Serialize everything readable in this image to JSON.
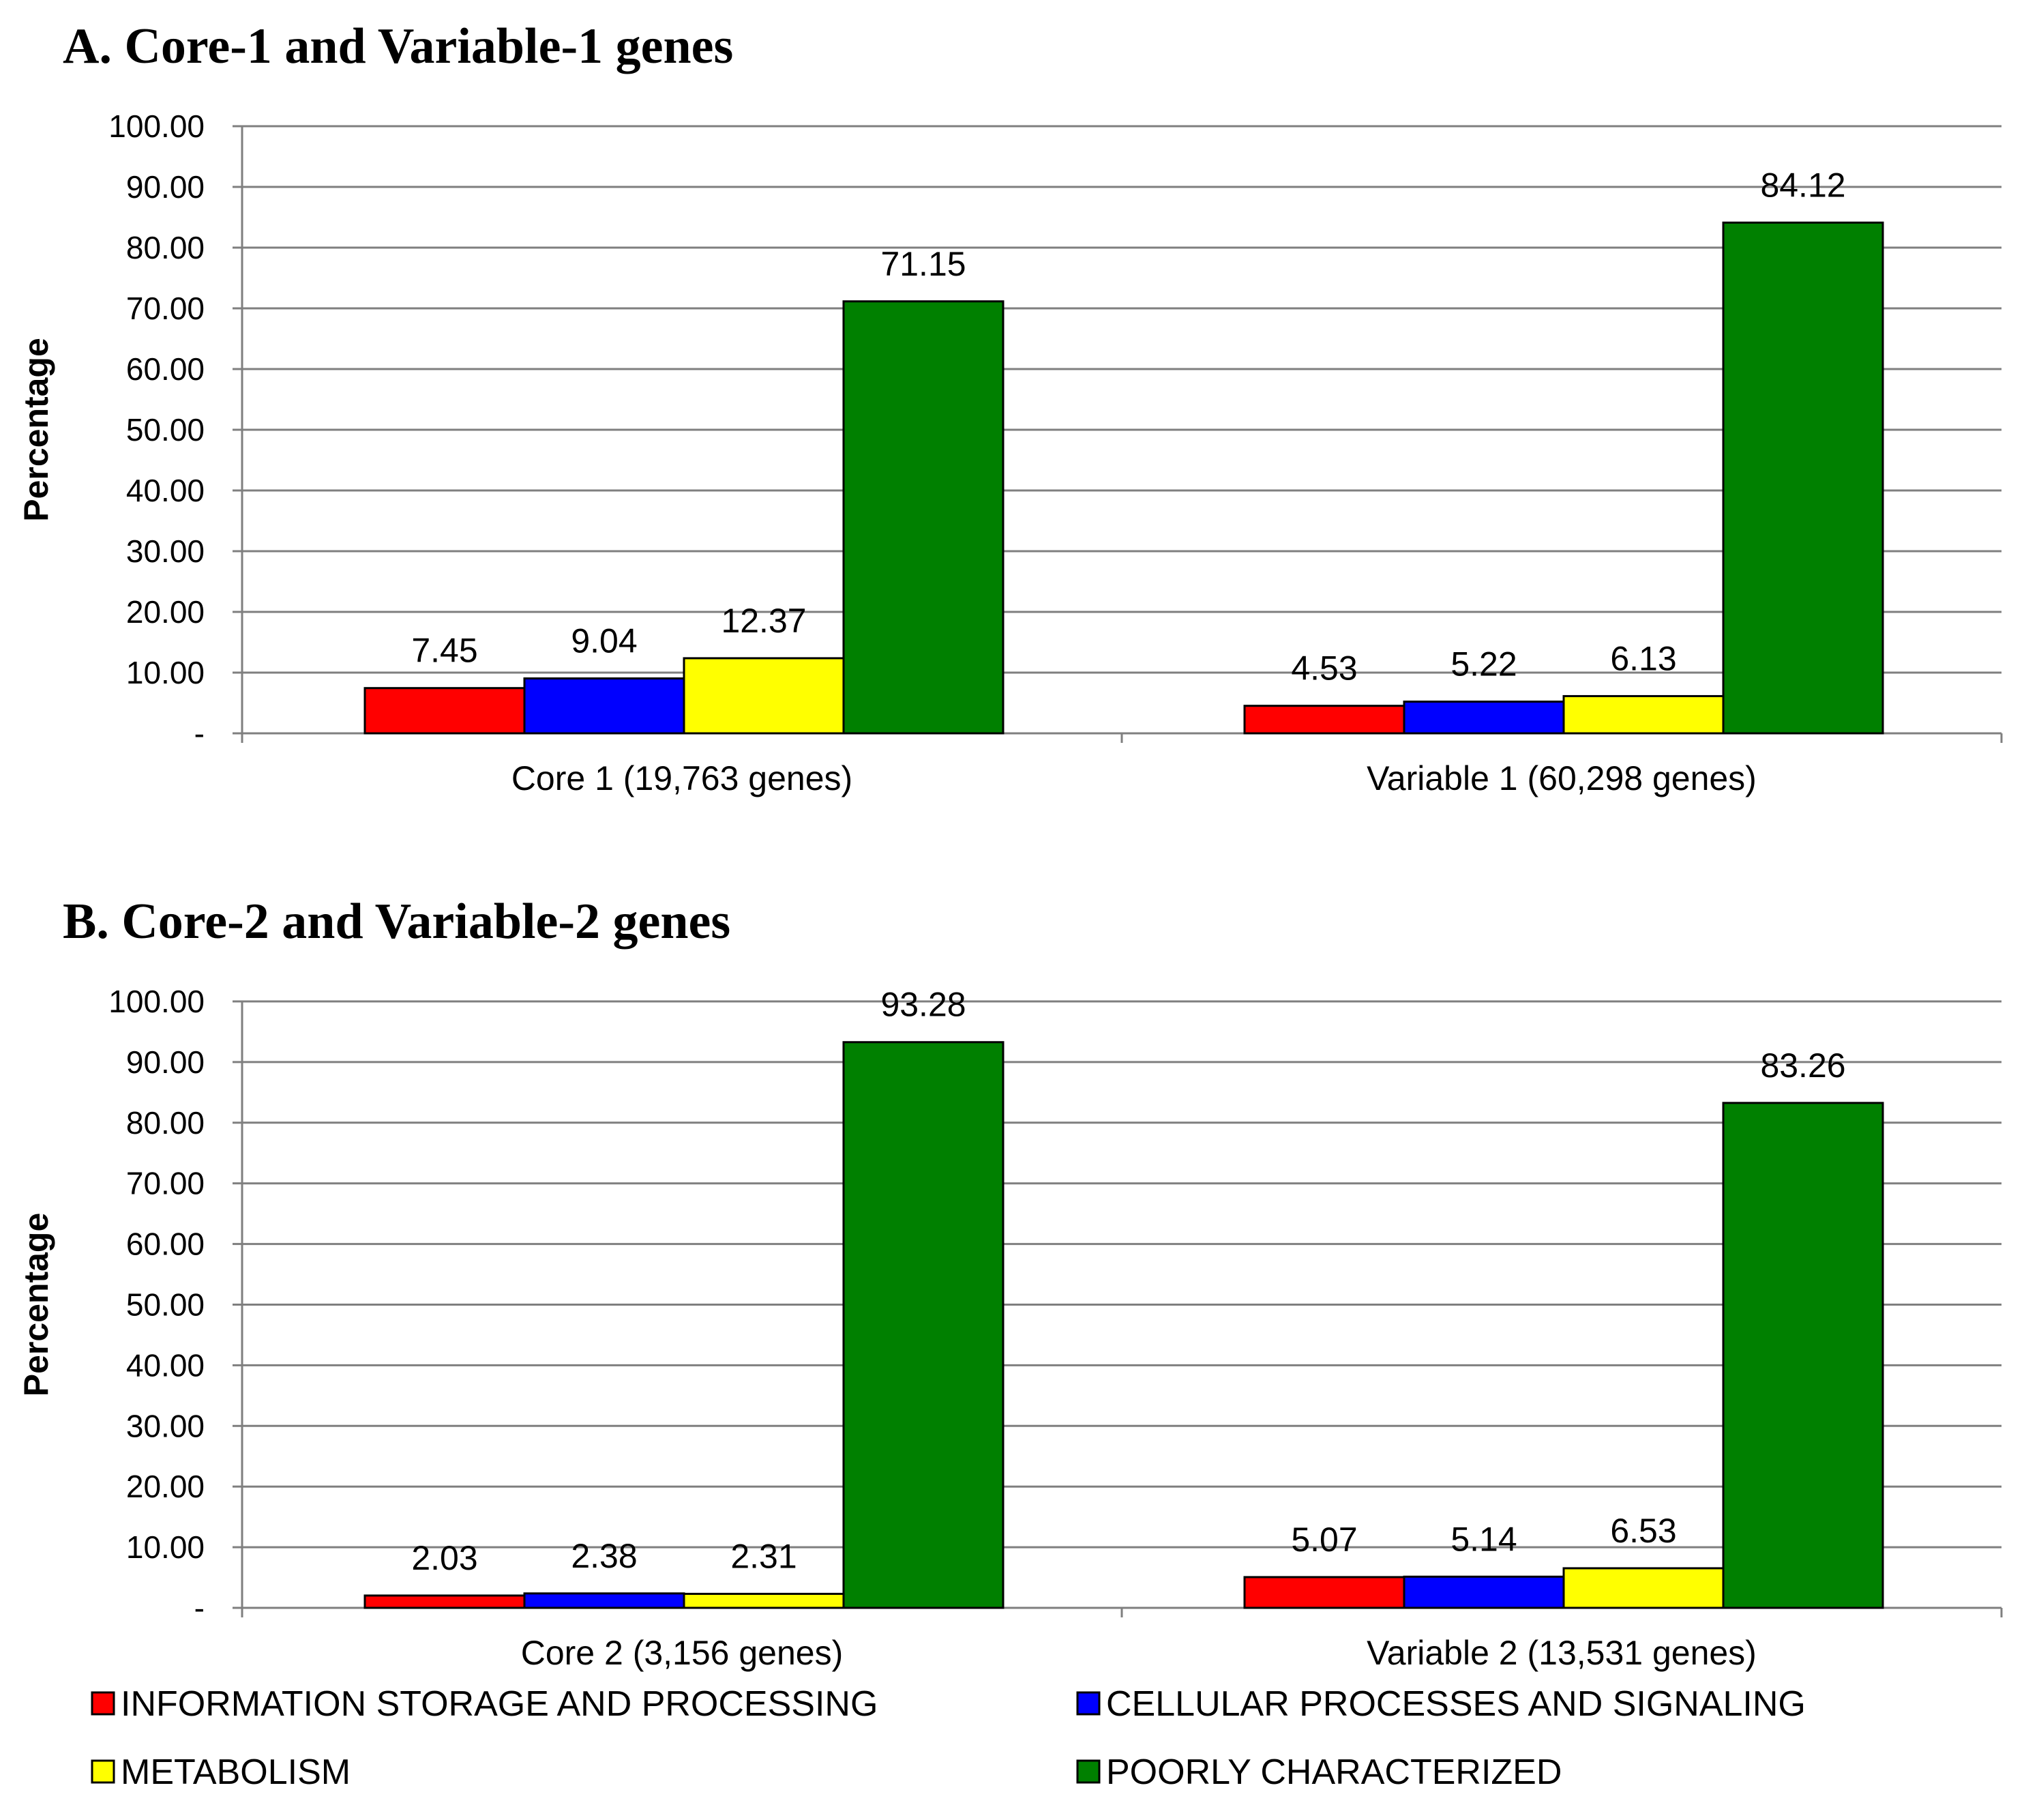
{
  "chart_data": [
    {
      "type": "bar",
      "title": "A. Core-1 and Variable-1 genes",
      "ylabel": "Percentage",
      "ylim": [
        0,
        100
      ],
      "ytick_labels": [
        "-",
        "10.00",
        "20.00",
        "30.00",
        "40.00",
        "50.00",
        "60.00",
        "70.00",
        "80.00",
        "90.00",
        "100.00"
      ],
      "grid": true,
      "categories": [
        "Core 1 (19,763 genes)",
        "Variable 1 (60,298 genes)"
      ],
      "series": [
        {
          "name": "INFORMATION STORAGE AND PROCESSING",
          "values": [
            7.45,
            4.53
          ],
          "labels": [
            "7.45",
            "4.53"
          ]
        },
        {
          "name": "CELLULAR PROCESSES AND SIGNALING",
          "values": [
            9.04,
            5.22
          ],
          "labels": [
            "9.04",
            "5.22"
          ]
        },
        {
          "name": "METABOLISM",
          "values": [
            12.37,
            6.13
          ],
          "labels": [
            "12.37",
            "6.13"
          ]
        },
        {
          "name": "POORLY CHARACTERIZED",
          "values": [
            71.15,
            84.12
          ],
          "labels": [
            "71.15",
            "84.12"
          ]
        }
      ]
    },
    {
      "type": "bar",
      "title": "B. Core-2 and Variable-2 genes",
      "ylabel": "Percentage",
      "ylim": [
        0,
        100
      ],
      "ytick_labels": [
        "-",
        "10.00",
        "20.00",
        "30.00",
        "40.00",
        "50.00",
        "60.00",
        "70.00",
        "80.00",
        "90.00",
        "100.00"
      ],
      "grid": true,
      "categories": [
        "Core 2 (3,156 genes)",
        "Variable 2 (13,531 genes)"
      ],
      "series": [
        {
          "name": "INFORMATION STORAGE AND PROCESSING",
          "values": [
            2.03,
            5.07
          ],
          "labels": [
            "2.03",
            "5.07"
          ]
        },
        {
          "name": "CELLULAR PROCESSES AND SIGNALING",
          "values": [
            2.38,
            5.14
          ],
          "labels": [
            "2.38",
            "5.14"
          ]
        },
        {
          "name": "METABOLISM",
          "values": [
            2.31,
            6.53
          ],
          "labels": [
            "2.31",
            "6.53"
          ]
        },
        {
          "name": "POORLY CHARACTERIZED",
          "values": [
            93.28,
            83.26
          ],
          "labels": [
            "93.28",
            "83.26"
          ]
        }
      ]
    }
  ],
  "legend": {
    "placement": "bottom",
    "items": [
      {
        "name": "INFORMATION STORAGE AND PROCESSING",
        "color": "#ff0000"
      },
      {
        "name": "CELLULAR PROCESSES AND SIGNALING",
        "color": "#0000ff"
      },
      {
        "name": "METABOLISM",
        "color": "#ffff00"
      },
      {
        "name": "POORLY CHARACTERIZED",
        "color": "#008000"
      }
    ]
  },
  "colors": [
    "#ff0000",
    "#0000ff",
    "#ffff00",
    "#008000"
  ]
}
